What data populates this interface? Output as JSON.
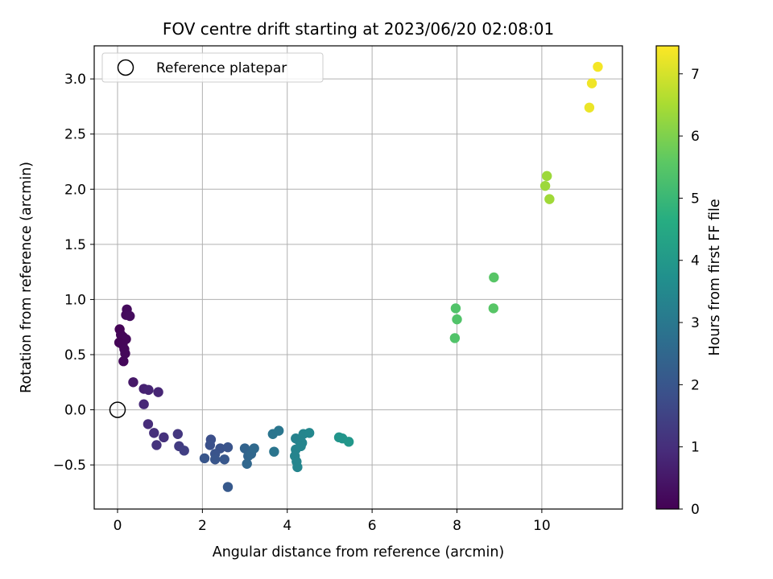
{
  "chart_data": {
    "type": "scatter",
    "title": "FOV centre drift starting at 2023/06/20 02:08:01",
    "xlabel": "Angular distance from reference (arcmin)",
    "ylabel": "Rotation from reference (arcmin)",
    "xlim": [
      -0.55,
      11.9
    ],
    "ylim": [
      -0.9,
      3.3
    ],
    "xticks": [
      0,
      2,
      4,
      6,
      8,
      10
    ],
    "xtick_labels": [
      "0",
      "2",
      "4",
      "6",
      "8",
      "10"
    ],
    "yticks": [
      -0.5,
      0.0,
      0.5,
      1.0,
      1.5,
      2.0,
      2.5,
      3.0
    ],
    "ytick_labels": [
      "−0.5",
      "0.0",
      "0.5",
      "1.0",
      "1.5",
      "2.0",
      "2.5",
      "3.0"
    ],
    "grid": true,
    "legend": {
      "position": "upper-left",
      "label": "Reference platepar"
    },
    "reference_point": {
      "x": 0.0,
      "y": 0.0
    },
    "colorbar": {
      "label": "Hours from first FF file",
      "range": [
        0,
        7.45
      ],
      "ticks": [
        0,
        1,
        2,
        3,
        4,
        5,
        6,
        7
      ],
      "tick_labels": [
        "0",
        "1",
        "2",
        "3",
        "4",
        "5",
        "6",
        "7"
      ],
      "colormap": "viridis"
    },
    "points": [
      {
        "x": 0.22,
        "y": 0.91,
        "c": 0.2
      },
      {
        "x": 0.2,
        "y": 0.86,
        "c": 0.22
      },
      {
        "x": 0.29,
        "y": 0.85,
        "c": 0.25
      },
      {
        "x": 0.05,
        "y": 0.73,
        "c": 0.05
      },
      {
        "x": 0.08,
        "y": 0.68,
        "c": 0.08
      },
      {
        "x": 0.13,
        "y": 0.66,
        "c": 0.1
      },
      {
        "x": 0.2,
        "y": 0.64,
        "c": 0.12
      },
      {
        "x": 0.04,
        "y": 0.61,
        "c": 0.06
      },
      {
        "x": 0.12,
        "y": 0.59,
        "c": 0.1
      },
      {
        "x": 0.16,
        "y": 0.55,
        "c": 0.12
      },
      {
        "x": 0.18,
        "y": 0.51,
        "c": 0.15
      },
      {
        "x": 0.14,
        "y": 0.44,
        "c": 0.14
      },
      {
        "x": 0.37,
        "y": 0.25,
        "c": 0.5
      },
      {
        "x": 0.62,
        "y": 0.19,
        "c": 0.7
      },
      {
        "x": 0.73,
        "y": 0.18,
        "c": 0.75
      },
      {
        "x": 0.96,
        "y": 0.16,
        "c": 0.8
      },
      {
        "x": 0.62,
        "y": 0.05,
        "c": 0.85
      },
      {
        "x": 0.72,
        "y": -0.13,
        "c": 0.95
      },
      {
        "x": 0.86,
        "y": -0.21,
        "c": 1.0
      },
      {
        "x": 1.09,
        "y": -0.25,
        "c": 1.05
      },
      {
        "x": 0.92,
        "y": -0.32,
        "c": 1.1
      },
      {
        "x": 1.42,
        "y": -0.22,
        "c": 1.2
      },
      {
        "x": 1.45,
        "y": -0.33,
        "c": 1.3
      },
      {
        "x": 1.57,
        "y": -0.37,
        "c": 1.4
      },
      {
        "x": 2.2,
        "y": -0.27,
        "c": 1.8
      },
      {
        "x": 2.18,
        "y": -0.32,
        "c": 1.85
      },
      {
        "x": 2.42,
        "y": -0.35,
        "c": 1.9
      },
      {
        "x": 2.6,
        "y": -0.34,
        "c": 1.95
      },
      {
        "x": 2.3,
        "y": -0.4,
        "c": 1.95
      },
      {
        "x": 2.05,
        "y": -0.44,
        "c": 2.0
      },
      {
        "x": 2.3,
        "y": -0.45,
        "c": 2.0
      },
      {
        "x": 2.52,
        "y": -0.45,
        "c": 2.05
      },
      {
        "x": 2.6,
        "y": -0.7,
        "c": 2.1
      },
      {
        "x": 3.0,
        "y": -0.35,
        "c": 2.4
      },
      {
        "x": 3.08,
        "y": -0.42,
        "c": 2.45
      },
      {
        "x": 3.15,
        "y": -0.4,
        "c": 2.5
      },
      {
        "x": 3.22,
        "y": -0.35,
        "c": 2.55
      },
      {
        "x": 3.05,
        "y": -0.49,
        "c": 2.5
      },
      {
        "x": 3.66,
        "y": -0.22,
        "c": 2.9
      },
      {
        "x": 3.8,
        "y": -0.19,
        "c": 2.95
      },
      {
        "x": 3.69,
        "y": -0.38,
        "c": 2.9
      },
      {
        "x": 4.2,
        "y": -0.26,
        "c": 3.3
      },
      {
        "x": 4.28,
        "y": -0.28,
        "c": 3.3
      },
      {
        "x": 4.38,
        "y": -0.22,
        "c": 3.4
      },
      {
        "x": 4.52,
        "y": -0.21,
        "c": 3.45
      },
      {
        "x": 4.35,
        "y": -0.3,
        "c": 3.4
      },
      {
        "x": 4.2,
        "y": -0.36,
        "c": 3.35
      },
      {
        "x": 4.32,
        "y": -0.33,
        "c": 3.4
      },
      {
        "x": 4.18,
        "y": -0.42,
        "c": 3.35
      },
      {
        "x": 4.22,
        "y": -0.47,
        "c": 3.4
      },
      {
        "x": 4.24,
        "y": -0.52,
        "c": 3.4
      },
      {
        "x": 5.22,
        "y": -0.25,
        "c": 3.9
      },
      {
        "x": 5.3,
        "y": -0.26,
        "c": 3.9
      },
      {
        "x": 5.45,
        "y": -0.29,
        "c": 3.95
      },
      {
        "x": 7.97,
        "y": 0.92,
        "c": 5.4
      },
      {
        "x": 8.0,
        "y": 0.82,
        "c": 5.4
      },
      {
        "x": 7.95,
        "y": 0.65,
        "c": 5.4
      },
      {
        "x": 8.87,
        "y": 1.2,
        "c": 5.5
      },
      {
        "x": 8.86,
        "y": 0.92,
        "c": 5.5
      },
      {
        "x": 10.12,
        "y": 2.12,
        "c": 6.35
      },
      {
        "x": 10.08,
        "y": 2.03,
        "c": 6.35
      },
      {
        "x": 10.18,
        "y": 1.91,
        "c": 6.4
      },
      {
        "x": 11.32,
        "y": 3.11,
        "c": 7.35
      },
      {
        "x": 11.18,
        "y": 2.96,
        "c": 7.3
      },
      {
        "x": 11.12,
        "y": 2.74,
        "c": 7.25
      }
    ]
  }
}
